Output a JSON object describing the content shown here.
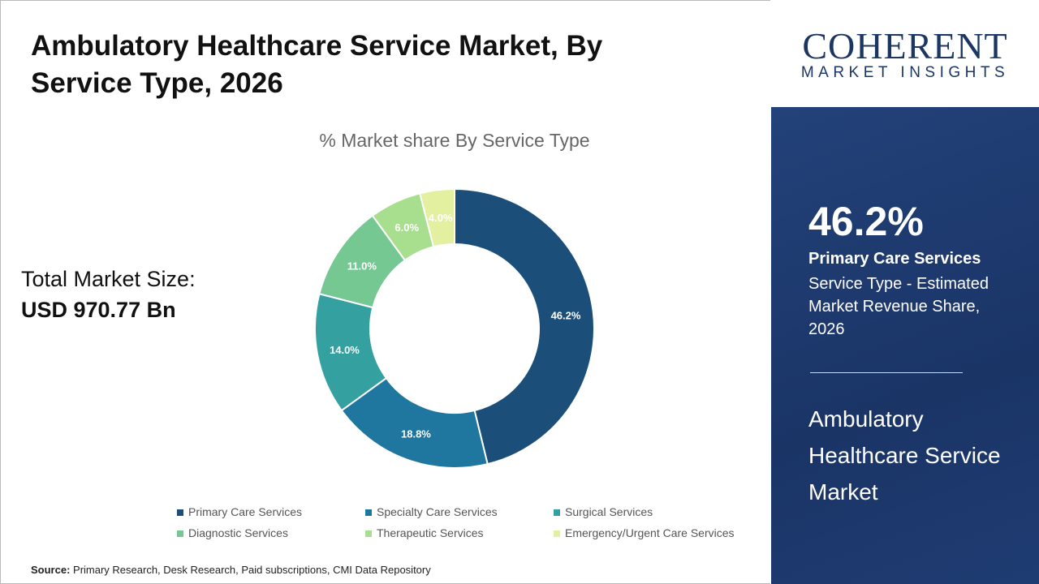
{
  "title": "Ambulatory Healthcare Service Market, By Service Type, 2026",
  "total_label": "Total Market Size:",
  "total_value": "USD 970.77 Bn",
  "source_label": "Source:",
  "source_text": "Primary Research, Desk Research, Paid subscriptions, CMI Data Repository",
  "logo": {
    "line1": "COHERENT",
    "line2": "MARKET INSIGHTS"
  },
  "panel": {
    "value": "46.2%",
    "segment": "Primary Care Services",
    "description": "Service Type - Estimated Market Revenue Share, 2026",
    "market": "Ambulatory Healthcare Service Market"
  },
  "chart_data": {
    "type": "pie",
    "donut": true,
    "title": "% Market share By Service Type",
    "categories": [
      "Primary Care Services",
      "Specialty Care Services",
      "Surgical Services",
      "Diagnostic Services",
      "Therapeutic Services",
      "Emergency/Urgent Care Services"
    ],
    "values": [
      46.2,
      18.8,
      14.0,
      11.0,
      6.0,
      4.0
    ],
    "labels": [
      "46.2%",
      "18.8%",
      "14.0%",
      "11.0%",
      "6.0%",
      "4.0%"
    ],
    "colors": [
      "#1b4f7a",
      "#1f77a0",
      "#35a0a0",
      "#76c893",
      "#a8df8e",
      "#e3f0a0"
    ],
    "legend": "bottom"
  }
}
